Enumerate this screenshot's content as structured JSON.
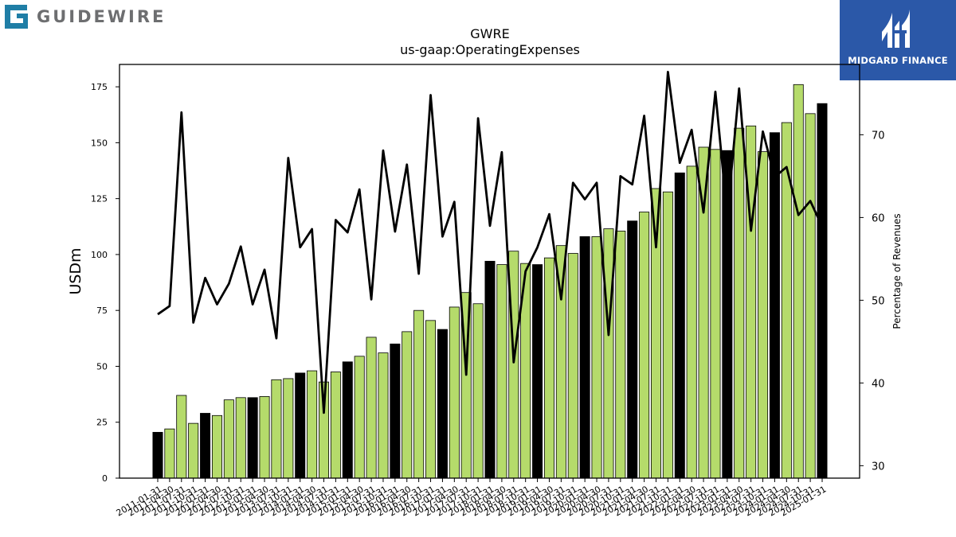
{
  "header": {
    "logo_text": "GUIDEWIRE",
    "badge_text": "MIDGARD FINANCE"
  },
  "chart_data": {
    "type": "bar",
    "title": "GWRE",
    "subtitle": "us-gaap:OperatingExpenses",
    "ylabel": "USDm",
    "y2label": "Percentage of Revenues",
    "ylim": [
      0,
      185
    ],
    "y2lim": [
      28.5,
      78.5
    ],
    "yticks": [
      0,
      25,
      50,
      75,
      100,
      125,
      150,
      175
    ],
    "y2ticks": [
      30,
      40,
      50,
      60,
      70
    ],
    "grid": false,
    "colors": {
      "bar_fy": "#000000",
      "bar_quarter": "#b5db6b",
      "line": "#000000"
    },
    "categories": [
      "2011-01-31",
      "2011-04-30",
      "2011-07-31",
      "2011-10-31",
      "2012-01-31",
      "2012-04-30",
      "2012-07-31",
      "2012-10-31",
      "2013-01-31",
      "2013-04-30",
      "2013-07-31",
      "2013-10-31",
      "2014-01-31",
      "2014-04-30",
      "2014-07-31",
      "2014-10-31",
      "2015-01-31",
      "2015-04-30",
      "2015-07-31",
      "2015-10-31",
      "2016-01-31",
      "2016-04-30",
      "2016-07-31",
      "2016-10-31",
      "2017-01-31",
      "2017-04-30",
      "2017-07-31",
      "2017-10-31",
      "2018-01-31",
      "2018-04-30",
      "2018-07-31",
      "2018-10-31",
      "2019-01-31",
      "2019-04-30",
      "2019-07-31",
      "2019-10-31",
      "2020-01-31",
      "2020-04-30",
      "2020-07-31",
      "2020-10-31",
      "2021-01-31",
      "2021-04-30",
      "2021-07-31",
      "2021-10-31",
      "2022-01-31",
      "2022-04-30",
      "2022-07-31",
      "2022-10-31",
      "2023-01-31",
      "2023-04-30",
      "2023-07-31",
      "2023-10-31",
      "2024-01-31",
      "2024-04-30",
      "2024-07-31",
      "2024-10-31",
      "2025-01-31"
    ],
    "series": [
      {
        "kind": "bar",
        "axis": "left",
        "values": [
          20.5,
          22,
          37,
          24.5,
          29,
          28,
          35,
          36,
          36,
          36.5,
          44,
          44.5,
          47,
          48,
          43,
          47.5,
          52,
          54.5,
          63,
          56,
          60,
          65.5,
          75,
          70.5,
          66.5,
          76.5,
          83,
          78,
          97,
          95.5,
          101.5,
          96,
          95.5,
          98.5,
          104,
          100.5,
          108,
          108,
          111.5,
          110.5,
          115,
          119,
          129.5,
          128,
          136.5,
          139.5,
          148,
          147,
          146.5,
          156.5,
          157.5,
          146,
          154.5,
          159,
          176,
          163,
          167.5
        ],
        "fiscal_year_end": [
          true,
          false,
          false,
          false,
          true,
          false,
          false,
          false,
          true,
          false,
          false,
          false,
          true,
          false,
          false,
          false,
          true,
          false,
          false,
          false,
          true,
          false,
          false,
          false,
          true,
          false,
          false,
          false,
          true,
          false,
          false,
          false,
          true,
          false,
          false,
          false,
          true,
          false,
          false,
          false,
          true,
          false,
          false,
          false,
          true,
          false,
          false,
          false,
          true,
          false,
          false,
          false,
          true,
          false,
          false,
          false,
          true
        ]
      },
      {
        "kind": "line",
        "axis": "right",
        "values": [
          48.3,
          49.3,
          72.7,
          47.3,
          52.7,
          49.5,
          52,
          56.5,
          49.5,
          53.7,
          45.4,
          67.2,
          56.4,
          58.6,
          36.4,
          59.7,
          58.2,
          63.4,
          50.1,
          68.1,
          58.3,
          66.4,
          53.2,
          74.8,
          57.7,
          61.9,
          41,
          72,
          59,
          67.9,
          42.5,
          53.5,
          56.4,
          60.4,
          50.1,
          64.2,
          62.2,
          64.2,
          45.8,
          65,
          64,
          72.3,
          56.4,
          77.6,
          66.6,
          70.6,
          60.6,
          75.2,
          60.2,
          75.6,
          58.4,
          70.4,
          64.9,
          66.1,
          60.3,
          62,
          58.9
        ]
      }
    ]
  }
}
